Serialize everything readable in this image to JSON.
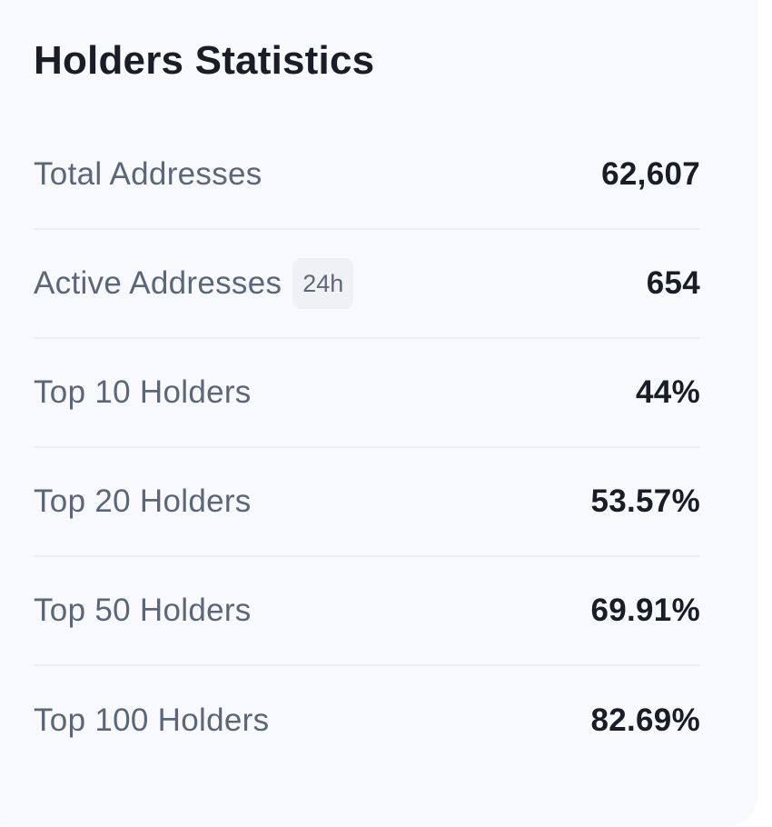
{
  "widget": {
    "title": "Holders Statistics",
    "rows": [
      {
        "label": "Total Addresses",
        "badge": "",
        "value": "62,607"
      },
      {
        "label": "Active Addresses",
        "badge": "24h",
        "value": "654"
      },
      {
        "label": "Top 10 Holders",
        "badge": "",
        "value": "44%"
      },
      {
        "label": "Top 20 Holders",
        "badge": "",
        "value": "53.57%"
      },
      {
        "label": "Top 50 Holders",
        "badge": "",
        "value": "69.91%"
      },
      {
        "label": "Top 100 Holders",
        "badge": "",
        "value": "82.69%"
      }
    ]
  }
}
